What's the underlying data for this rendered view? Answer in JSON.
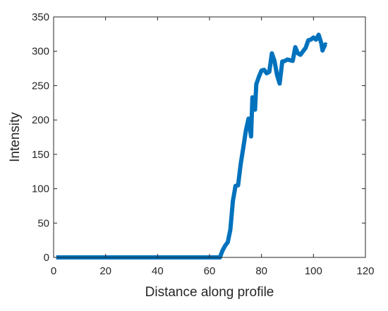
{
  "chart_data": {
    "type": "line",
    "title": "",
    "xlabel": "Distance along profile",
    "ylabel": "Intensity",
    "xlim": [
      0,
      120
    ],
    "ylim": [
      0,
      350
    ],
    "xticks": [
      0,
      20,
      40,
      60,
      80,
      100,
      120
    ],
    "yticks": [
      0,
      50,
      100,
      150,
      200,
      250,
      300,
      350
    ],
    "xtick_labels": [
      "0",
      "20",
      "40",
      "60",
      "80",
      "100",
      "120"
    ],
    "ytick_labels": [
      "0",
      "50",
      "100",
      "150",
      "200",
      "250",
      "300",
      "350"
    ],
    "grid": false,
    "legend": "none",
    "series": [
      {
        "color": "#0072BD",
        "x": [
          1,
          10,
          20,
          30,
          40,
          50,
          60,
          64,
          65,
          66,
          67,
          68,
          69,
          70,
          71,
          72,
          73,
          74,
          75,
          75.6,
          76,
          76.5,
          77,
          77.5,
          78,
          79,
          80,
          81,
          82,
          83,
          84,
          85,
          86,
          87,
          88,
          89,
          90,
          91,
          92,
          93,
          94,
          95,
          96,
          97,
          98,
          99,
          100,
          101,
          102,
          103,
          103.5,
          104,
          104.6,
          105
        ],
        "y": [
          0,
          0,
          0,
          0,
          0,
          0,
          0,
          0,
          10,
          17,
          22,
          40,
          82,
          104,
          105,
          136,
          160,
          185,
          202,
          186,
          176,
          233,
          232,
          215,
          252,
          263,
          272,
          273,
          268,
          270,
          297,
          286,
          265,
          253,
          285,
          286,
          288,
          287,
          286,
          306,
          297,
          295,
          300,
          305,
          316,
          317,
          320,
          317,
          324,
          312,
          301,
          306,
          310,
          309
        ]
      }
    ]
  }
}
